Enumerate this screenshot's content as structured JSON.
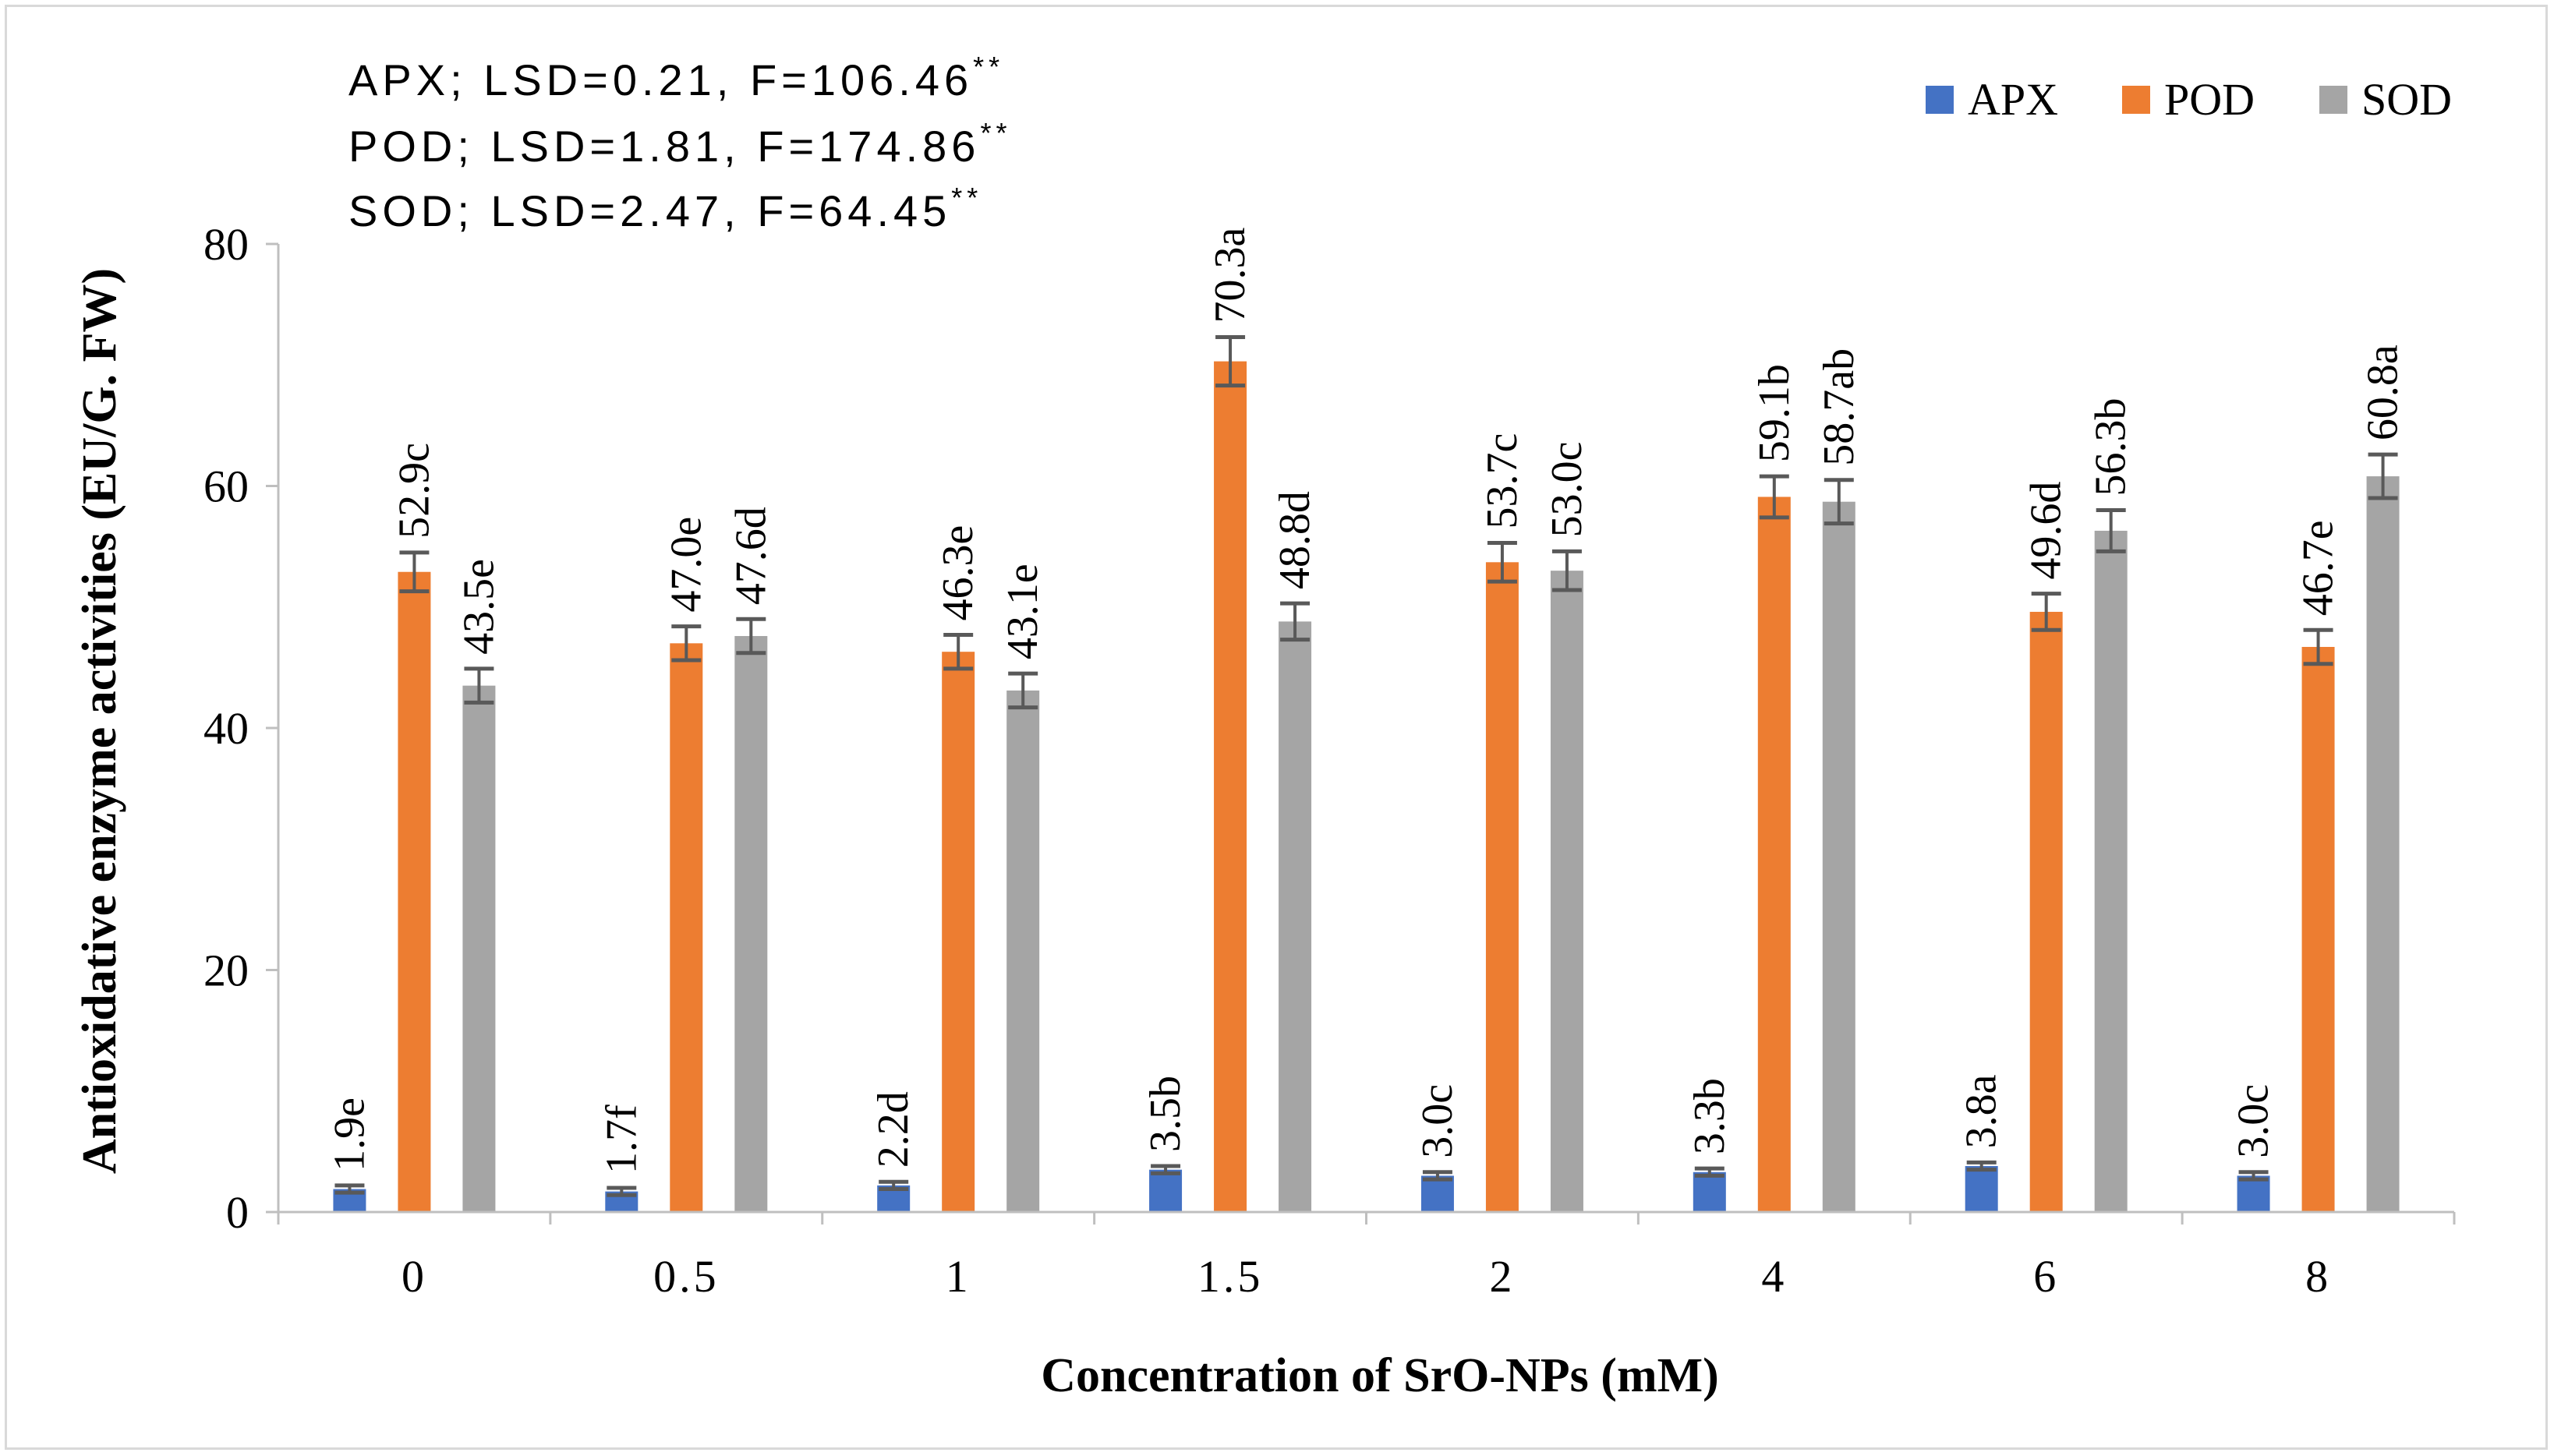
{
  "chart_data": {
    "type": "bar",
    "title": "",
    "xlabel": "Concentration of SrO-NPs (mM)",
    "ylabel": "Antioxidative enzyme activities (EU/G. FW)",
    "categories": [
      "0",
      "0.5",
      "1",
      "1.5",
      "2",
      "4",
      "6",
      "8"
    ],
    "category_labels": [
      "0",
      "0.5",
      "1",
      "1.5",
      "2",
      "4",
      "6",
      "8"
    ],
    "ylim": [
      0,
      80
    ],
    "yticks": [
      "0",
      "20",
      "40",
      "60",
      "80"
    ],
    "ytick_values": [
      0,
      20,
      40,
      60,
      80
    ],
    "grid": false,
    "legend_position": "top-right",
    "series": [
      {
        "name": "APX",
        "color": "#4472c4",
        "values": [
          1.9,
          1.7,
          2.2,
          3.5,
          3.0,
          3.3,
          3.8,
          3.0
        ],
        "errors": [
          0.3,
          0.3,
          0.3,
          0.3,
          0.3,
          0.3,
          0.3,
          0.3
        ],
        "labels": [
          "1.9e",
          "1.7f",
          "2.2d",
          "3.5b",
          "3.0c",
          "3.3b",
          "3.8a",
          "3.0c"
        ]
      },
      {
        "name": "POD",
        "color": "#ed7d31",
        "values": [
          52.9,
          47.0,
          46.3,
          70.3,
          53.7,
          59.1,
          49.6,
          46.7
        ],
        "errors": [
          1.6,
          1.4,
          1.4,
          2.0,
          1.6,
          1.7,
          1.5,
          1.4
        ],
        "labels": [
          "52.9c",
          "47.0e",
          "46.3e",
          "70.3a",
          "53.7c",
          "59.1b",
          "49.6d",
          "46.7e"
        ]
      },
      {
        "name": "SOD",
        "color": "#a5a5a5",
        "values": [
          43.5,
          47.6,
          43.1,
          48.8,
          53.0,
          58.7,
          56.3,
          60.8
        ],
        "errors": [
          1.4,
          1.4,
          1.4,
          1.5,
          1.6,
          1.8,
          1.7,
          1.8
        ],
        "labels": [
          "43.5e",
          "47.6d",
          "43.1e",
          "48.8d",
          "53.0c",
          "58.7ab",
          "56.3b",
          "60.8a"
        ]
      }
    ],
    "annotations": [
      {
        "name": "APX",
        "lsd": "LSD=0.21",
        "f": "F=106.46",
        "sig": "**"
      },
      {
        "name": "POD",
        "lsd": "LSD=1.81",
        "f": "F=174.86",
        "sig": "**"
      },
      {
        "name": "SOD",
        "lsd": "LSD=2.47",
        "f": "F=64.45",
        "sig": "**"
      }
    ]
  }
}
